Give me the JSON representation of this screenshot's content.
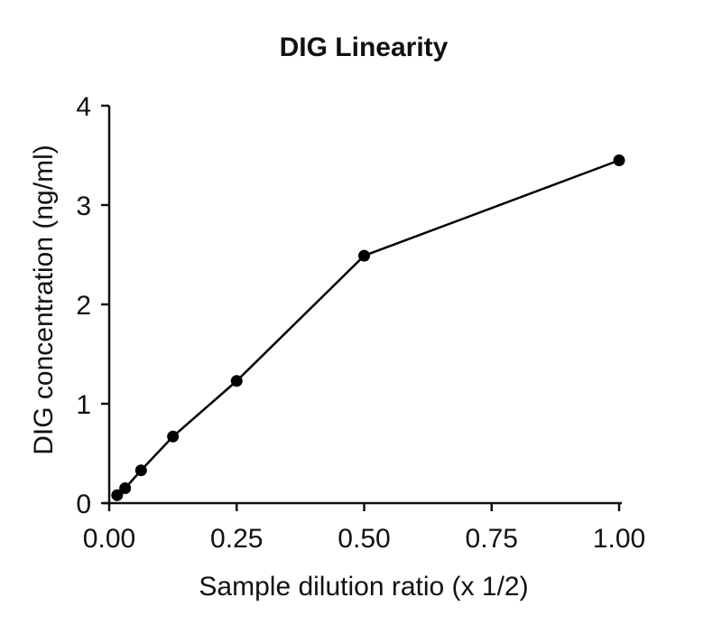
{
  "chart_data": {
    "type": "line",
    "title": "DIG Linearity",
    "xlabel": "Sample dilution ratio (x 1/2)",
    "ylabel": "DIG concentration (ng/ml)",
    "xlim": [
      0,
      1.0
    ],
    "ylim": [
      0,
      4
    ],
    "x_ticks": [
      0.0,
      0.25,
      0.5,
      0.75,
      1.0
    ],
    "x_tick_labels": [
      "0.00",
      "0.25",
      "0.50",
      "0.75",
      "1.00"
    ],
    "y_ticks": [
      0,
      1,
      2,
      3,
      4
    ],
    "y_tick_labels": [
      "0",
      "1",
      "2",
      "3",
      "4"
    ],
    "grid": false,
    "legend": "none",
    "series": [
      {
        "x": [
          0.0156,
          0.03125,
          0.0625,
          0.125,
          0.25,
          0.5,
          1.0
        ],
        "y": [
          0.08,
          0.15,
          0.33,
          0.67,
          1.23,
          2.49,
          3.45
        ],
        "color": "#000000",
        "marker": "circle"
      }
    ]
  }
}
